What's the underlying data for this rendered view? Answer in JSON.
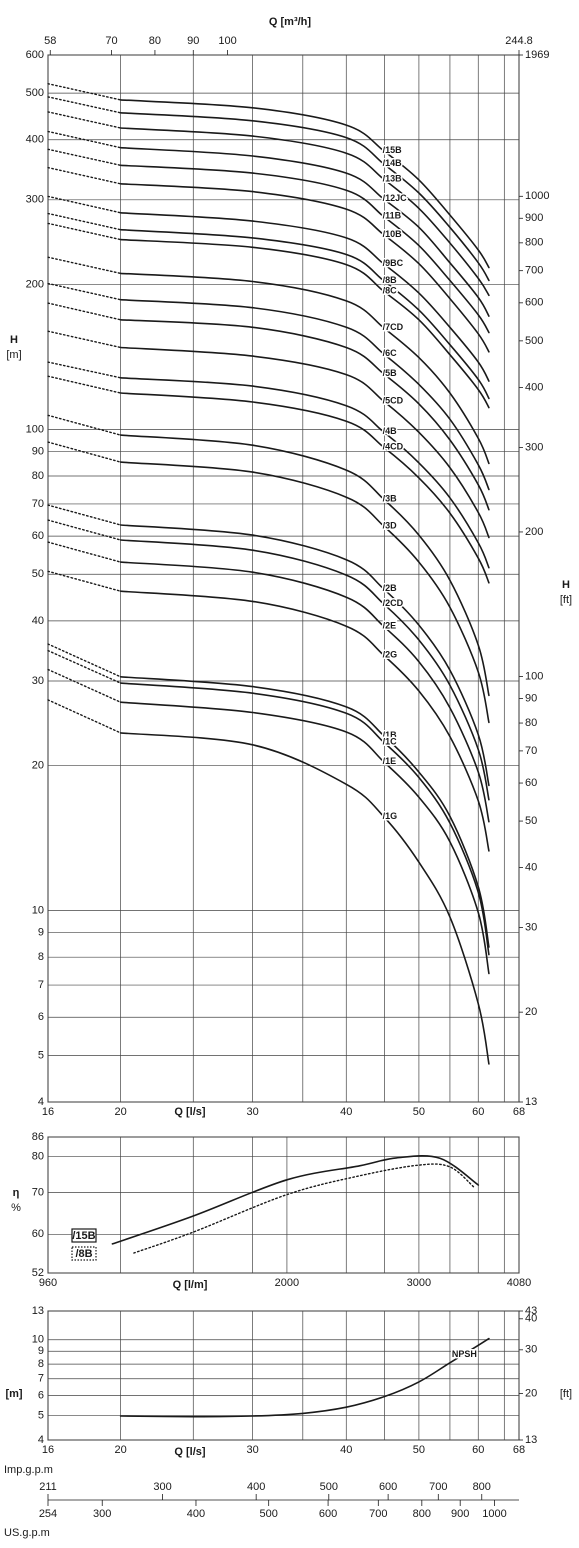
{
  "chart_data": [
    {
      "type": "line",
      "xlabel": "Q [l/s]",
      "x2label": "Q [m³/h]",
      "ylabel": [
        "H",
        "[m]"
      ],
      "y2label": [
        "H",
        "[ft]"
      ],
      "xscale": "log",
      "yscale": "log",
      "xlim": [
        16,
        68
      ],
      "xticks": [
        16,
        20,
        30,
        40,
        50,
        60,
        68
      ],
      "xminor": [
        25,
        35,
        45,
        55,
        65
      ],
      "x2lim": [
        57.6,
        244.8
      ],
      "x2ticks": [
        58,
        70,
        80,
        90,
        100,
        244.8
      ],
      "ylim": [
        4,
        600
      ],
      "yticks": [
        4,
        5,
        6,
        7,
        8,
        9,
        10,
        20,
        30,
        40,
        50,
        60,
        70,
        80,
        90,
        100,
        200,
        300,
        400,
        500,
        600
      ],
      "y2lim": [
        13,
        1969
      ],
      "y2ticks": [
        13,
        20,
        30,
        40,
        50,
        60,
        70,
        80,
        90,
        100,
        200,
        300,
        400,
        500,
        600,
        700,
        800,
        900,
        1000,
        1969
      ],
      "grid": true,
      "color": "#1a1a1a",
      "dotted_to": 20,
      "x": [
        16,
        20,
        30,
        40,
        45,
        50,
        55,
        60,
        62
      ],
      "series": [
        {
          "name": "/15B",
          "values": [
            523,
            484,
            466,
            429,
            378,
            330,
            279,
            236,
            217
          ]
        },
        {
          "name": "/14B",
          "values": [
            491,
            455,
            438,
            404,
            355,
            310,
            263,
            222,
            204
          ]
        },
        {
          "name": "/13B",
          "values": [
            457,
            423,
            407,
            375,
            330,
            288,
            244,
            206,
            190
          ]
        },
        {
          "name": "/12JC",
          "values": [
            416,
            385,
            370,
            341,
            300,
            263,
            222,
            188,
            172
          ]
        },
        {
          "name": "/11B",
          "values": [
            382,
            354,
            341,
            314,
            276,
            241,
            204,
            173,
            159
          ]
        },
        {
          "name": "/10B",
          "values": [
            350,
            324,
            312,
            287,
            253,
            221,
            187,
            158,
            145
          ]
        },
        {
          "name": "/9BC",
          "values": [
            305,
            282,
            271,
            250,
            220,
            192,
            163,
            138,
            126
          ]
        },
        {
          "name": "/8B",
          "values": [
            281,
            260,
            250,
            231,
            203,
            177,
            150,
            127,
            116
          ]
        },
        {
          "name": "/8C",
          "values": [
            268,
            248,
            239,
            220,
            193,
            169,
            143,
            121,
            111
          ]
        },
        {
          "name": "/7CD",
          "values": [
            228,
            211,
            203,
            185,
            162,
            141,
            119,
            95.8,
            85.0
          ]
        },
        {
          "name": "/6C",
          "values": [
            201,
            186,
            179,
            163,
            143,
            124,
            105,
            84.4,
            75.0
          ]
        },
        {
          "name": "/5B",
          "values": [
            183,
            169,
            163,
            148,
            130,
            113,
            95.1,
            76.7,
            68.1
          ]
        },
        {
          "name": "/5CD",
          "values": [
            160,
            148,
            142,
            130,
            114,
            98.6,
            83.3,
            67.2,
            59.6
          ]
        },
        {
          "name": "/4B",
          "values": [
            138,
            128,
            123,
            112,
            98.4,
            85.2,
            72.1,
            58.1,
            51.6
          ]
        },
        {
          "name": "/4CD",
          "values": [
            129,
            119,
            114,
            104,
            91.5,
            79.3,
            67.0,
            54.0,
            48.0
          ]
        },
        {
          "name": "/3B",
          "values": [
            107,
            97.3,
            92.7,
            82.3,
            71.3,
            60.3,
            48.6,
            35.6,
            28.0
          ]
        },
        {
          "name": "/3D",
          "values": [
            94.1,
            85.5,
            81.5,
            72.3,
            62.7,
            53.0,
            42.7,
            31.3,
            24.6
          ]
        },
        {
          "name": "/2B",
          "values": [
            69.6,
            63.3,
            60.3,
            53.6,
            46.4,
            39.2,
            31.6,
            23.2,
            18.2
          ]
        },
        {
          "name": "/2CD",
          "values": [
            64.8,
            58.9,
            56.1,
            49.8,
            43.2,
            36.5,
            29.4,
            21.6,
            17.0
          ]
        },
        {
          "name": "/2E",
          "values": [
            58.3,
            53.0,
            50.5,
            44.8,
            38.8,
            32.9,
            26.4,
            19.4,
            15.3
          ]
        },
        {
          "name": "/2G",
          "values": [
            50.7,
            46.1,
            43.9,
            39.0,
            33.8,
            28.6,
            23.0,
            16.9,
            13.3
          ]
        },
        {
          "name": "/1B",
          "values": [
            35.8,
            30.6,
            29.2,
            26.5,
            23.0,
            19.4,
            15.7,
            11.2,
            8.4
          ]
        },
        {
          "name": "/1C",
          "values": [
            34.7,
            29.7,
            28.3,
            25.7,
            22.3,
            18.9,
            15.2,
            10.9,
            8.1
          ]
        },
        {
          "name": "/1E",
          "values": [
            31.7,
            27.1,
            25.8,
            23.5,
            20.3,
            17.2,
            13.9,
            9.9,
            7.4
          ]
        },
        {
          "name": "/1G",
          "values": [
            27.4,
            23.4,
            22.1,
            18.3,
            15.6,
            12.6,
            9.7,
            6.4,
            4.8
          ]
        }
      ]
    },
    {
      "type": "line",
      "xlabel": "Q [l/m]",
      "ylabel": [
        "η",
        "%"
      ],
      "xscale": "log",
      "yscale": "log",
      "xlim": [
        960,
        4080
      ],
      "xticks": [
        960,
        2000,
        3000,
        4080
      ],
      "xminor": [
        1200,
        1500,
        1800,
        2400,
        2700,
        3300,
        3600,
        3900
      ],
      "ylim": [
        52,
        86
      ],
      "yticks": [
        52,
        60,
        70,
        80,
        86
      ],
      "grid": true,
      "color": "#1a1a1a",
      "legend": "lower left",
      "series": [
        {
          "name": "/15B",
          "style": "solid",
          "x": [
            1170,
            1500,
            2000,
            2500,
            2800,
            3200,
            3600
          ],
          "values": [
            57.9,
            64.2,
            73.4,
            77.3,
            79.6,
            79.5,
            72.0
          ]
        },
        {
          "name": "/8B",
          "style": "dotted",
          "x": [
            1250,
            1500,
            2000,
            2500,
            3000,
            3300,
            3550
          ],
          "values": [
            56.0,
            60.5,
            69.5,
            74.5,
            77.5,
            77.0,
            71.5
          ]
        }
      ]
    },
    {
      "type": "line",
      "xlabel": "Q [l/s]",
      "ylabel": [
        "[m]"
      ],
      "y2label": [
        "[ft]"
      ],
      "xscale": "log",
      "yscale": "log",
      "xlim": [
        16,
        68
      ],
      "xticks": [
        16,
        20,
        30,
        40,
        50,
        60,
        68
      ],
      "xminor": [
        25,
        35,
        45,
        55,
        65
      ],
      "ylim": [
        4,
        13
      ],
      "yticks": [
        4,
        5,
        6,
        7,
        8,
        9,
        10,
        13
      ],
      "y2lim": [
        13,
        43
      ],
      "y2ticks": [
        13,
        20,
        30,
        40,
        43
      ],
      "grid": true,
      "color": "#1a1a1a",
      "series": [
        {
          "name": "NPSH",
          "style": "solid",
          "x": [
            20,
            25,
            30,
            35,
            40,
            45,
            50,
            55,
            60,
            62
          ],
          "values": [
            4.98,
            4.95,
            4.98,
            5.1,
            5.4,
            5.95,
            6.8,
            8.1,
            9.5,
            10.1
          ]
        }
      ],
      "imp_axis": {
        "label": "Imp.g.p.m",
        "lim": [
          211,
          897
        ],
        "ticks": [
          211,
          300,
          400,
          500,
          600,
          700,
          800
        ]
      },
      "us_axis": {
        "label": "US.g.p.m",
        "lim": [
          254,
          1078
        ],
        "ticks": [
          254,
          300,
          400,
          500,
          600,
          700,
          800,
          900,
          1000
        ]
      }
    }
  ]
}
